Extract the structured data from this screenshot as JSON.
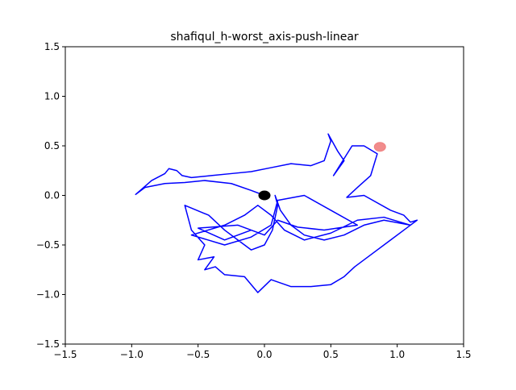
{
  "chart_data": {
    "type": "line",
    "title": "shafiqul_h-worst_axis-push-linear",
    "xlim": [
      -1.5,
      1.5
    ],
    "ylim": [
      -1.5,
      1.5
    ],
    "xticks": [
      {
        "value": -1.5,
        "label": "−1.5"
      },
      {
        "value": -1.0,
        "label": "−1.0"
      },
      {
        "value": -0.5,
        "label": "−0.5"
      },
      {
        "value": 0.0,
        "label": "0.0"
      },
      0.5,
      {
        "value": 1.0,
        "label": "1.0"
      },
      1.5
    ],
    "yticks": [
      {
        "value": -1.5,
        "label": "−1.5"
      },
      {
        "value": -1.0,
        "label": "−1.0"
      },
      {
        "value": -0.5,
        "label": "−0.5"
      },
      {
        "value": 0.0,
        "label": "0.0"
      },
      0.5,
      {
        "value": 1.0,
        "label": "1.0"
      },
      1.5
    ],
    "series": [
      {
        "type": "line",
        "color": "#0000ff",
        "x": [
          0.0,
          -0.1,
          -0.25,
          -0.45,
          -0.6,
          -0.75,
          -0.9,
          -0.97,
          -0.85,
          -0.75,
          -0.72,
          -0.66,
          -0.62,
          -0.55,
          -0.4,
          -0.25,
          -0.1,
          0.05,
          0.2,
          0.35,
          0.45,
          0.5,
          0.48,
          0.55,
          0.6,
          0.52,
          0.66,
          0.75,
          0.85,
          0.8,
          0.7,
          0.62,
          0.75,
          0.95,
          1.05,
          1.1,
          1.15,
          1.05,
          0.95,
          0.8,
          0.68,
          0.6,
          0.5,
          0.35,
          0.2,
          0.05,
          -0.05,
          -0.15,
          -0.3,
          -0.37,
          -0.45,
          -0.38,
          -0.5,
          -0.45,
          -0.55,
          -0.6,
          -0.42,
          -0.3,
          -0.2,
          -0.1,
          0.0,
          0.06,
          0.1,
          0.08,
          0.12,
          0.2,
          0.3,
          0.45,
          0.6,
          0.75,
          0.9,
          1.1,
          0.9,
          0.7,
          0.5,
          0.3,
          0.15,
          0.05,
          -0.05,
          -0.15,
          -0.3,
          -0.55,
          -0.3,
          -0.1,
          0.05,
          0.1,
          0.3,
          0.5,
          0.7,
          0.45,
          0.25,
          0.1,
          0.0,
          -0.2,
          -0.5,
          -0.3,
          -0.1
        ],
        "values": [
          0.0,
          0.05,
          0.12,
          0.15,
          0.13,
          0.12,
          0.08,
          0.01,
          0.15,
          0.22,
          0.27,
          0.25,
          0.2,
          0.18,
          0.2,
          0.22,
          0.24,
          0.28,
          0.32,
          0.3,
          0.35,
          0.55,
          0.62,
          0.45,
          0.35,
          0.2,
          0.5,
          0.5,
          0.42,
          0.2,
          0.08,
          -0.02,
          0.0,
          -0.15,
          -0.2,
          -0.27,
          -0.25,
          -0.35,
          -0.45,
          -0.6,
          -0.72,
          -0.82,
          -0.9,
          -0.92,
          -0.92,
          -0.85,
          -0.98,
          -0.82,
          -0.8,
          -0.72,
          -0.75,
          -0.62,
          -0.65,
          -0.5,
          -0.35,
          -0.1,
          -0.2,
          -0.35,
          -0.45,
          -0.55,
          -0.5,
          -0.35,
          -0.1,
          0.0,
          -0.15,
          -0.3,
          -0.4,
          -0.45,
          -0.4,
          -0.3,
          -0.25,
          -0.3,
          -0.22,
          -0.25,
          -0.38,
          -0.45,
          -0.35,
          -0.2,
          -0.1,
          -0.2,
          -0.3,
          -0.4,
          -0.5,
          -0.42,
          -0.3,
          -0.05,
          0.0,
          -0.15,
          -0.3,
          -0.35,
          -0.32,
          -0.25,
          -0.4,
          -0.3,
          -0.33,
          -0.45,
          -0.35
        ]
      },
      {
        "type": "point",
        "color": "#000000",
        "x": [
          0.0
        ],
        "values": [
          0.0
        ]
      },
      {
        "type": "point",
        "color": "#f08080",
        "x": [
          0.87
        ],
        "values": [
          0.49
        ]
      }
    ]
  }
}
